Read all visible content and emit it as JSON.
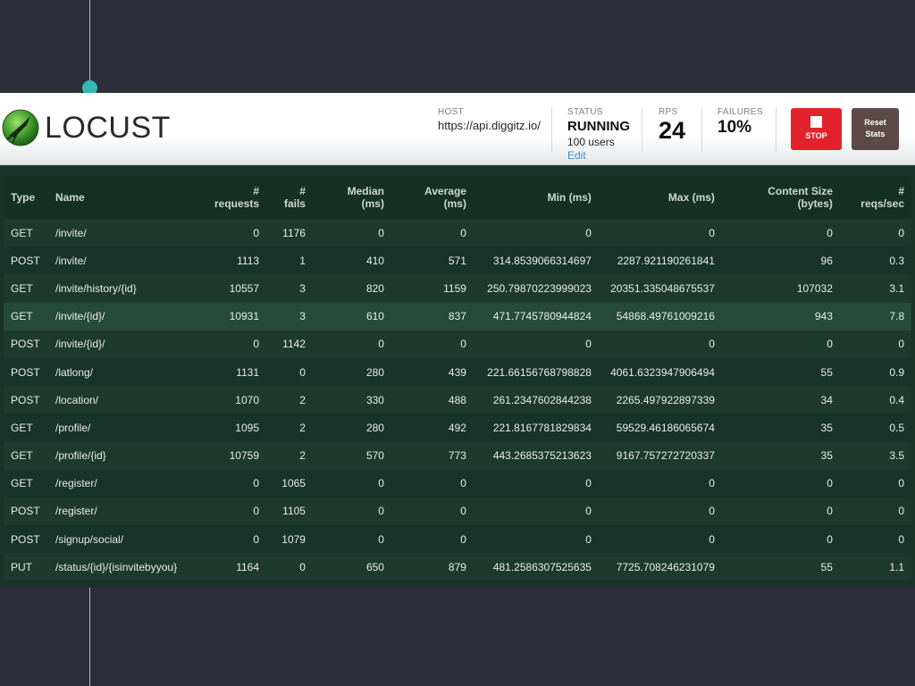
{
  "header": {
    "logo_text": "LOCUST",
    "host": {
      "label": "HOST",
      "value": "https://api.diggitz.io/"
    },
    "status": {
      "label": "STATUS",
      "value": "RUNNING",
      "users": "100 users",
      "edit": "Edit"
    },
    "rps": {
      "label": "RPS",
      "value": "24"
    },
    "failures": {
      "label": "FAILURES",
      "value": "10%"
    },
    "stop_label": "STOP",
    "reset_label_1": "Reset",
    "reset_label_2": "Stats"
  },
  "table": {
    "headers": [
      {
        "l1": "",
        "l2": "Type"
      },
      {
        "l1": "",
        "l2": "Name"
      },
      {
        "l1": "#",
        "l2": "requests"
      },
      {
        "l1": "#",
        "l2": "fails"
      },
      {
        "l1": "Median",
        "l2": "(ms)"
      },
      {
        "l1": "Average",
        "l2": "(ms)"
      },
      {
        "l1": "",
        "l2": "Min (ms)"
      },
      {
        "l1": "",
        "l2": "Max (ms)"
      },
      {
        "l1": "Content Size",
        "l2": "(bytes)"
      },
      {
        "l1": "#",
        "l2": "reqs/sec"
      }
    ],
    "rows": [
      [
        "GET",
        "/invite/",
        "0",
        "1176",
        "0",
        "0",
        "0",
        "0",
        "0",
        "0"
      ],
      [
        "POST",
        "/invite/",
        "1113",
        "1",
        "410",
        "571",
        "314.8539066314697",
        "2287.921190261841",
        "96",
        "0.3"
      ],
      [
        "GET",
        "/invite/history/{id}",
        "10557",
        "3",
        "820",
        "1159",
        "250.79870223999023",
        "20351.335048675537",
        "107032",
        "3.1"
      ],
      [
        "GET",
        "/invite/{id}/",
        "10931",
        "3",
        "610",
        "837",
        "471.7745780944824",
        "54868.49761009216",
        "943",
        "7.8"
      ],
      [
        "POST",
        "/invite/{id}/",
        "0",
        "1142",
        "0",
        "0",
        "0",
        "0",
        "0",
        "0"
      ],
      [
        "POST",
        "/latlong/",
        "1131",
        "0",
        "280",
        "439",
        "221.66156768798828",
        "4061.6323947906494",
        "55",
        "0.9"
      ],
      [
        "POST",
        "/location/",
        "1070",
        "2",
        "330",
        "488",
        "261.2347602844238",
        "2265.497922897339",
        "34",
        "0.4"
      ],
      [
        "GET",
        "/profile/",
        "1095",
        "2",
        "280",
        "492",
        "221.8167781829834",
        "59529.46186065674",
        "35",
        "0.5"
      ],
      [
        "GET",
        "/profile/{id}",
        "10759",
        "2",
        "570",
        "773",
        "443.2685375213623",
        "9167.757272720337",
        "35",
        "3.5"
      ],
      [
        "GET",
        "/register/",
        "0",
        "1065",
        "0",
        "0",
        "0",
        "0",
        "0",
        "0"
      ],
      [
        "POST",
        "/register/",
        "0",
        "1105",
        "0",
        "0",
        "0",
        "0",
        "0",
        "0"
      ],
      [
        "POST",
        "/signup/social/",
        "0",
        "1079",
        "0",
        "0",
        "0",
        "0",
        "0",
        "0"
      ],
      [
        "PUT",
        "/status/{id}/{isinvitebyyou}",
        "1164",
        "0",
        "650",
        "879",
        "481.2586307525635",
        "7725.708246231079",
        "55",
        "1.1"
      ]
    ]
  }
}
